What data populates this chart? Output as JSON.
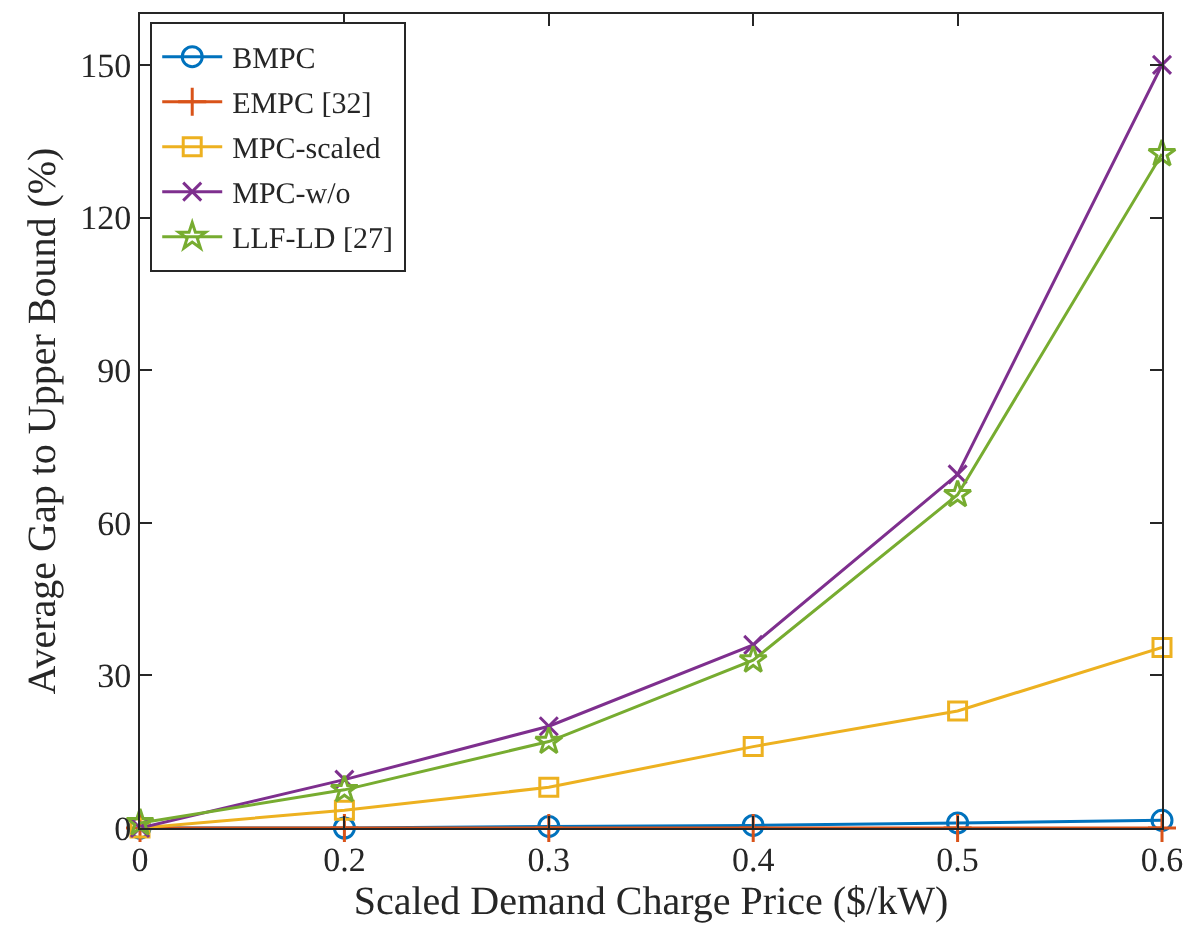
{
  "chart_data": {
    "type": "line",
    "xlabel": "Scaled Demand Charge Price ($/kW)",
    "ylabel": "Average Gap to Upper Bound (%)",
    "categories": [
      "0",
      "0.2",
      "0.3",
      "0.4",
      "0.5",
      "0.6"
    ],
    "ylim": [
      0,
      160
    ],
    "yticks": [
      0,
      30,
      60,
      90,
      120,
      150
    ],
    "grid": false,
    "legend": "top left",
    "line_style": "solid",
    "series": [
      {
        "name": "BMPC",
        "color": "#0072bd",
        "marker": "circle",
        "values": [
          0,
          0,
          0.3,
          0.5,
          1,
          1.5
        ]
      },
      {
        "name": "EMPC [32]",
        "color": "#d95319",
        "marker": "cross",
        "values": [
          0,
          0,
          0,
          0,
          0,
          0
        ]
      },
      {
        "name": "MPC-scaled",
        "color": "#edb120",
        "marker": "square",
        "values": [
          0,
          3.5,
          8,
          16,
          23,
          35.5
        ]
      },
      {
        "name": "MPC-w/o",
        "color": "#7e2f8e",
        "marker": "x",
        "values": [
          0,
          9.5,
          20,
          36,
          69.5,
          150
        ]
      },
      {
        "name": "LLF-LD [27]",
        "color": "#77ac30",
        "marker": "star",
        "values": [
          1,
          7.5,
          17,
          33,
          65.5,
          132.5
        ]
      }
    ]
  }
}
